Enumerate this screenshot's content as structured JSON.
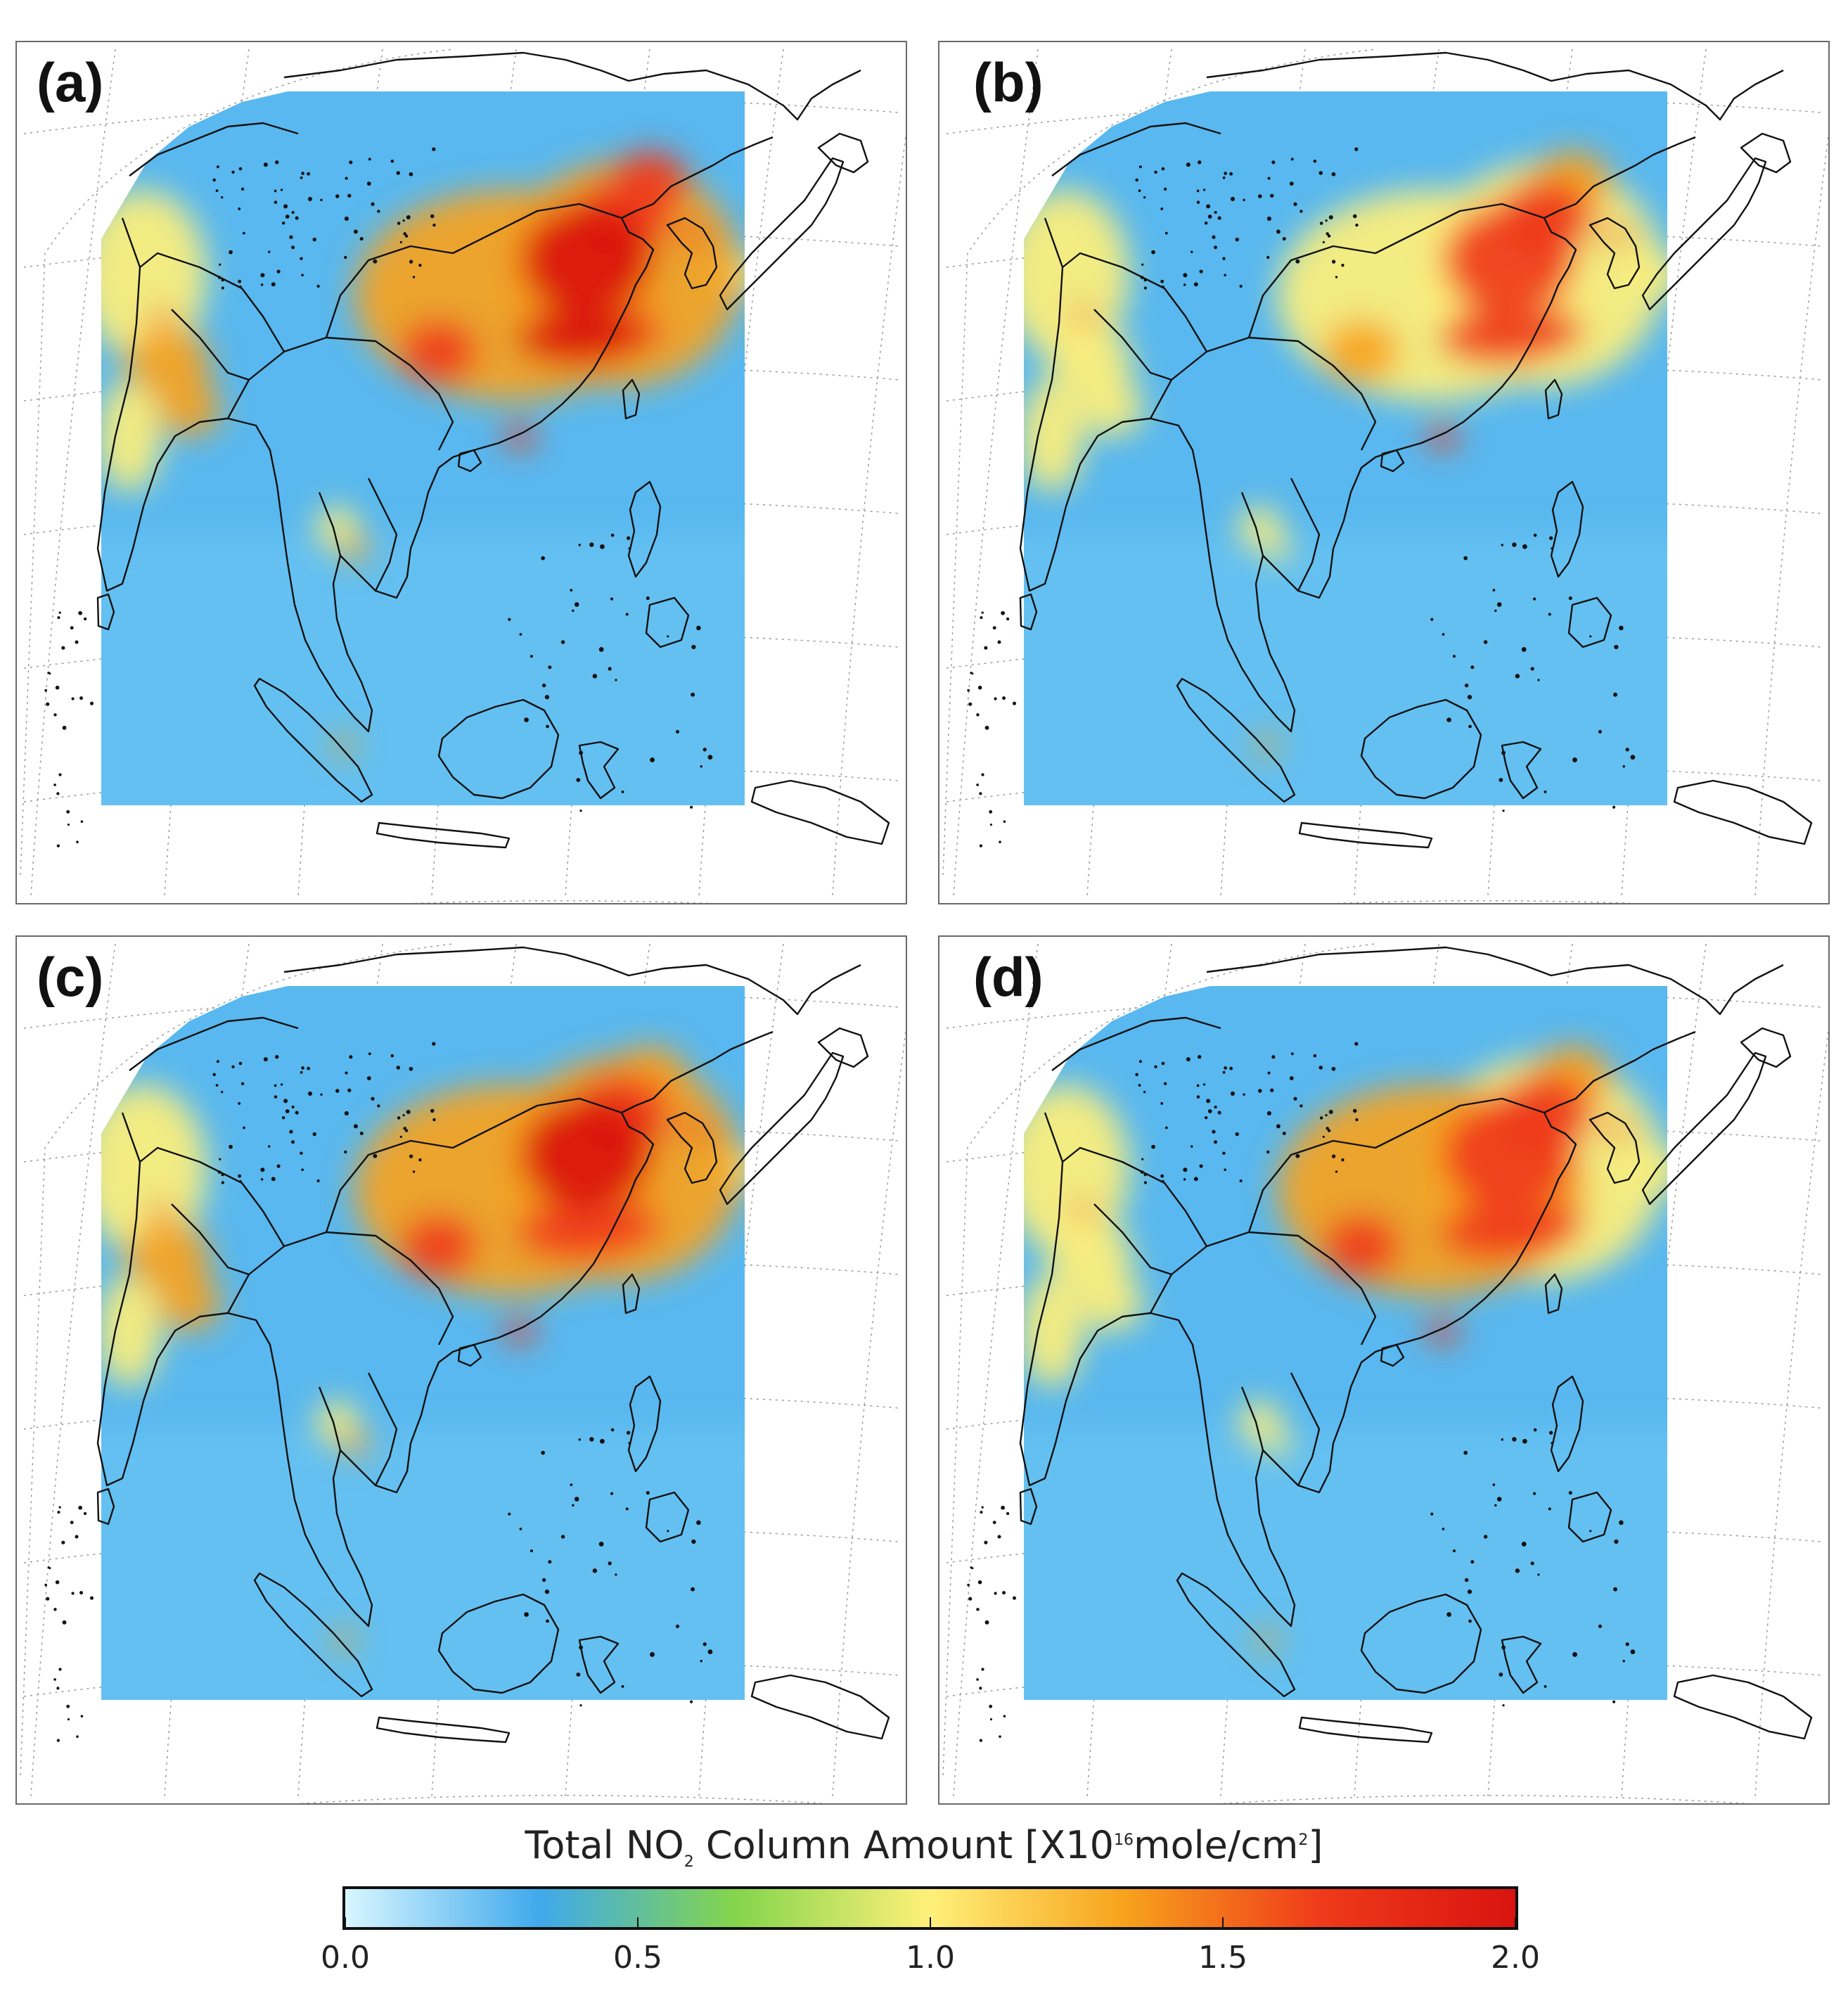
{
  "panels": [
    {
      "label": "(a)",
      "intensity": 1.0
    },
    {
      "label": "(b)",
      "intensity": 0.82
    },
    {
      "label": "(c)",
      "intensity": 0.95
    },
    {
      "label": "(d)",
      "intensity": 0.9
    }
  ],
  "colorbar": {
    "title_main": "Total NO",
    "title_sub": "2",
    "title_mid": " Column Amount [X10",
    "title_sup1": "16",
    "title_unit": "mole/cm",
    "title_sup2": "2",
    "title_end": "]",
    "min": 0.0,
    "max": 2.0,
    "ticks": [
      "0.0",
      "0.5",
      "1.0",
      "1.5",
      "2.0"
    ],
    "tick_values": [
      0.0,
      0.5,
      1.0,
      1.5,
      2.0
    ],
    "stops": [
      "#d8f6ff",
      "#3fa9ec",
      "#84d54b",
      "#fff07a",
      "#f7a21c",
      "#ef3a1a",
      "#d91410"
    ]
  }
}
